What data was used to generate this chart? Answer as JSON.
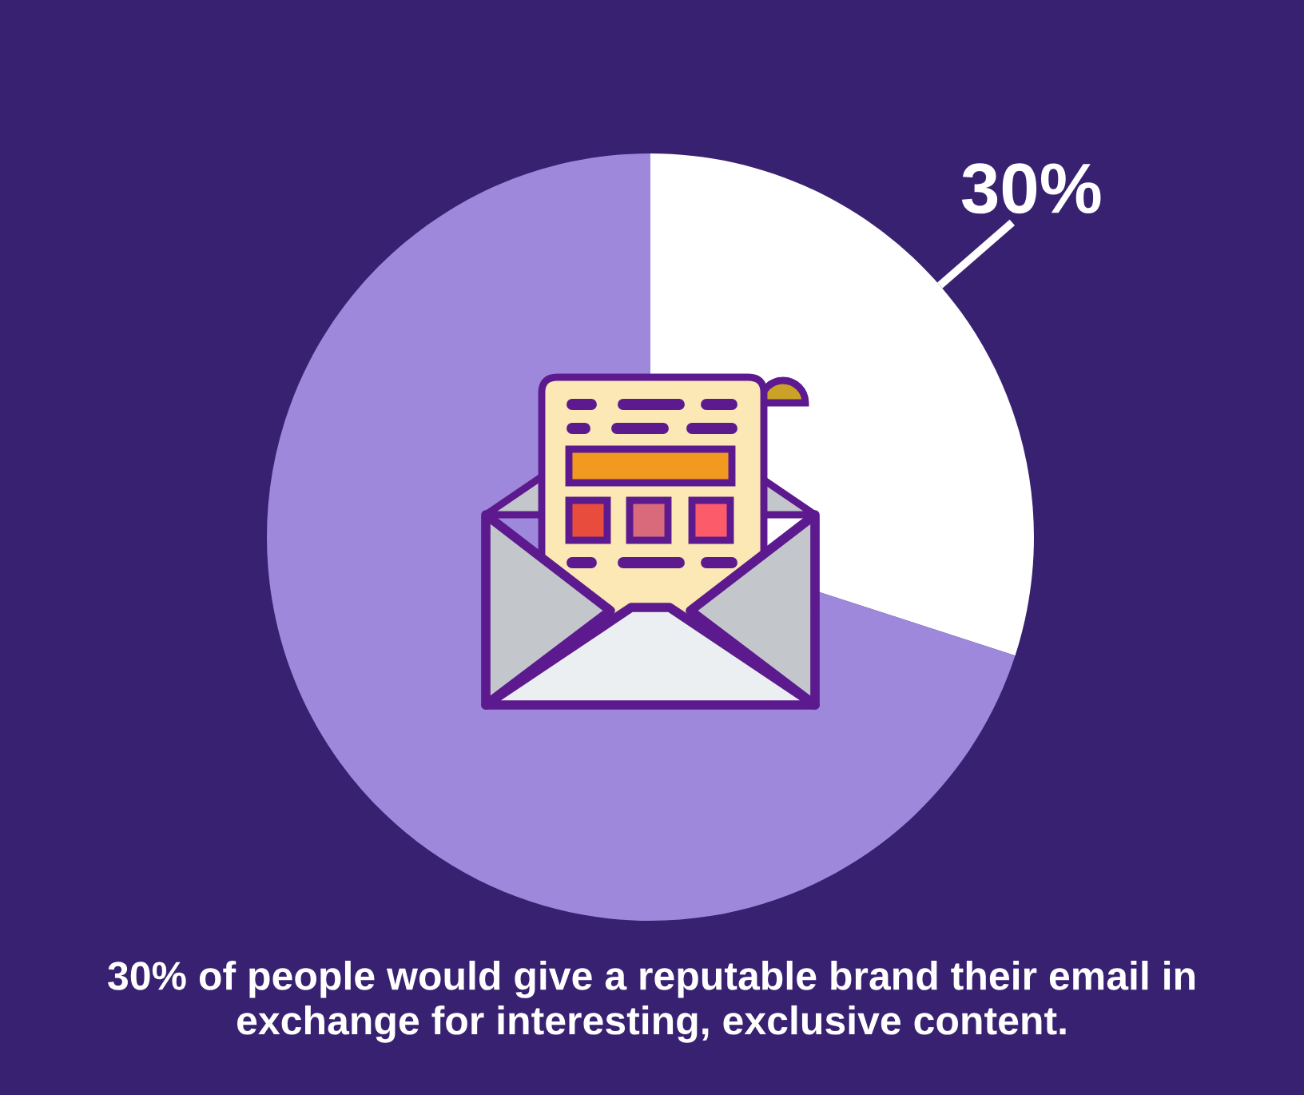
{
  "chart_data": {
    "type": "pie",
    "categories": [
      null,
      null
    ],
    "values": [
      30,
      70
    ],
    "colors": [
      "#ffffff",
      "#9e88dc"
    ],
    "value_labels": [
      "30%",
      null
    ],
    "annotations": [
      "30% of people would give a reputable brand their email in exchange for interesting, exclusive content."
    ]
  }
}
